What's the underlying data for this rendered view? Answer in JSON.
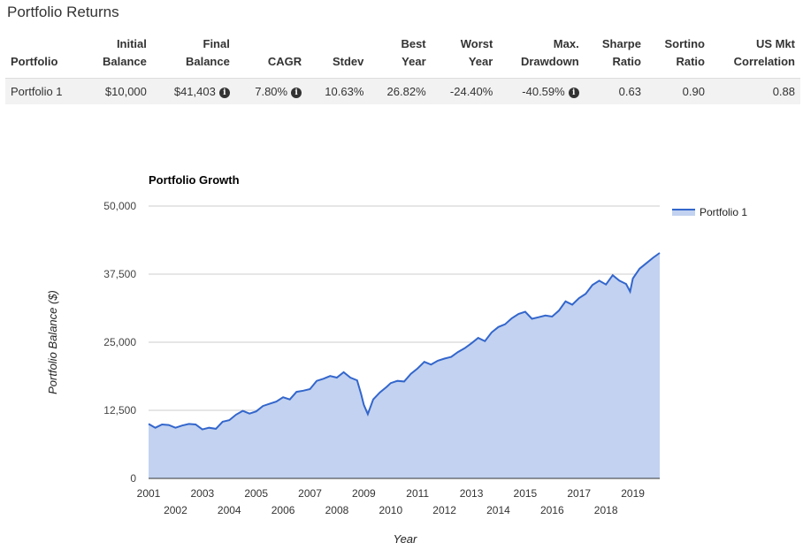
{
  "section_title": "Portfolio Returns",
  "table": {
    "headers": [
      {
        "line1": "",
        "line2": "Portfolio"
      },
      {
        "line1": "Initial",
        "line2": "Balance"
      },
      {
        "line1": "Final",
        "line2": "Balance"
      },
      {
        "line1": "",
        "line2": "CAGR"
      },
      {
        "line1": "",
        "line2": "Stdev"
      },
      {
        "line1": "Best",
        "line2": "Year"
      },
      {
        "line1": "Worst",
        "line2": "Year"
      },
      {
        "line1": "Max.",
        "line2": "Drawdown"
      },
      {
        "line1": "Sharpe",
        "line2": "Ratio"
      },
      {
        "line1": "Sortino",
        "line2": "Ratio"
      },
      {
        "line1": "US Mkt",
        "line2": "Correlation"
      }
    ],
    "row": {
      "portfolio": "Portfolio 1",
      "initial_balance": "$10,000",
      "final_balance": "$41,403",
      "cagr": "7.80%",
      "stdev": "10.63%",
      "best_year": "26.82%",
      "worst_year": "-24.40%",
      "max_drawdown": "-40.59%",
      "sharpe": "0.63",
      "sortino": "0.90",
      "us_mkt_correlation": "0.88"
    },
    "info_icon": "info-circle-icon",
    "info_glyph": "i"
  },
  "colors": {
    "line": "#3366cc",
    "fill": "#c2d2f0",
    "grid": "#cccccc",
    "axis": "#333333"
  },
  "chart_data": {
    "type": "area",
    "title": "Portfolio Growth",
    "xlabel": "Year",
    "ylabel": "Portfolio Balance ($)",
    "legend": "top-right",
    "series": [
      {
        "name": "Portfolio 1",
        "x": [
          2001.0,
          2001.25,
          2001.5,
          2001.75,
          2002.0,
          2002.25,
          2002.5,
          2002.75,
          2003.0,
          2003.25,
          2003.5,
          2003.75,
          2004.0,
          2004.25,
          2004.5,
          2004.75,
          2005.0,
          2005.25,
          2005.5,
          2005.75,
          2006.0,
          2006.25,
          2006.5,
          2006.75,
          2007.0,
          2007.25,
          2007.5,
          2007.75,
          2008.0,
          2008.25,
          2008.5,
          2008.75,
          2008.9,
          2009.0,
          2009.15,
          2009.35,
          2009.6,
          2009.85,
          2010.0,
          2010.25,
          2010.5,
          2010.75,
          2011.0,
          2011.25,
          2011.5,
          2011.75,
          2012.0,
          2012.25,
          2012.5,
          2012.75,
          2013.0,
          2013.25,
          2013.5,
          2013.75,
          2014.0,
          2014.25,
          2014.5,
          2014.75,
          2015.0,
          2015.25,
          2015.5,
          2015.75,
          2016.0,
          2016.25,
          2016.5,
          2016.75,
          2017.0,
          2017.25,
          2017.5,
          2017.75,
          2018.0,
          2018.25,
          2018.5,
          2018.75,
          2018.9,
          2019.0,
          2019.25,
          2019.5,
          2019.75,
          2020.0
        ],
        "values": [
          10000,
          9300,
          9900,
          9800,
          9300,
          9700,
          10000,
          9900,
          9000,
          9300,
          9100,
          10400,
          10700,
          11700,
          12400,
          11900,
          12300,
          13300,
          13700,
          14100,
          14900,
          14500,
          15900,
          16100,
          16400,
          17900,
          18300,
          18800,
          18500,
          19500,
          18500,
          18000,
          15500,
          13500,
          11800,
          14500,
          15800,
          16800,
          17500,
          17900,
          17800,
          19200,
          20200,
          21400,
          20900,
          21600,
          22000,
          22300,
          23200,
          23900,
          24800,
          25800,
          25200,
          26800,
          27800,
          28300,
          29400,
          30200,
          30600,
          29300,
          29600,
          29900,
          29700,
          30800,
          32500,
          31900,
          33100,
          33900,
          35500,
          36300,
          35600,
          37300,
          36300,
          35700,
          34300,
          36700,
          38500,
          39500,
          40500,
          41400
        ]
      }
    ],
    "x_ticks_top": [
      "2001",
      "2003",
      "2005",
      "2007",
      "2009",
      "2011",
      "2013",
      "2015",
      "2017",
      "2019"
    ],
    "x_ticks_bottom": [
      "2002",
      "2004",
      "2006",
      "2008",
      "2010",
      "2012",
      "2014",
      "2016",
      "2018"
    ],
    "y_ticks": [
      "0",
      "12,500",
      "25,000",
      "37,500",
      "50,000"
    ],
    "y_tick_values": [
      0,
      12500,
      25000,
      37500,
      50000
    ],
    "xlim": [
      2001,
      2020
    ],
    "ylim": [
      0,
      50000
    ]
  }
}
